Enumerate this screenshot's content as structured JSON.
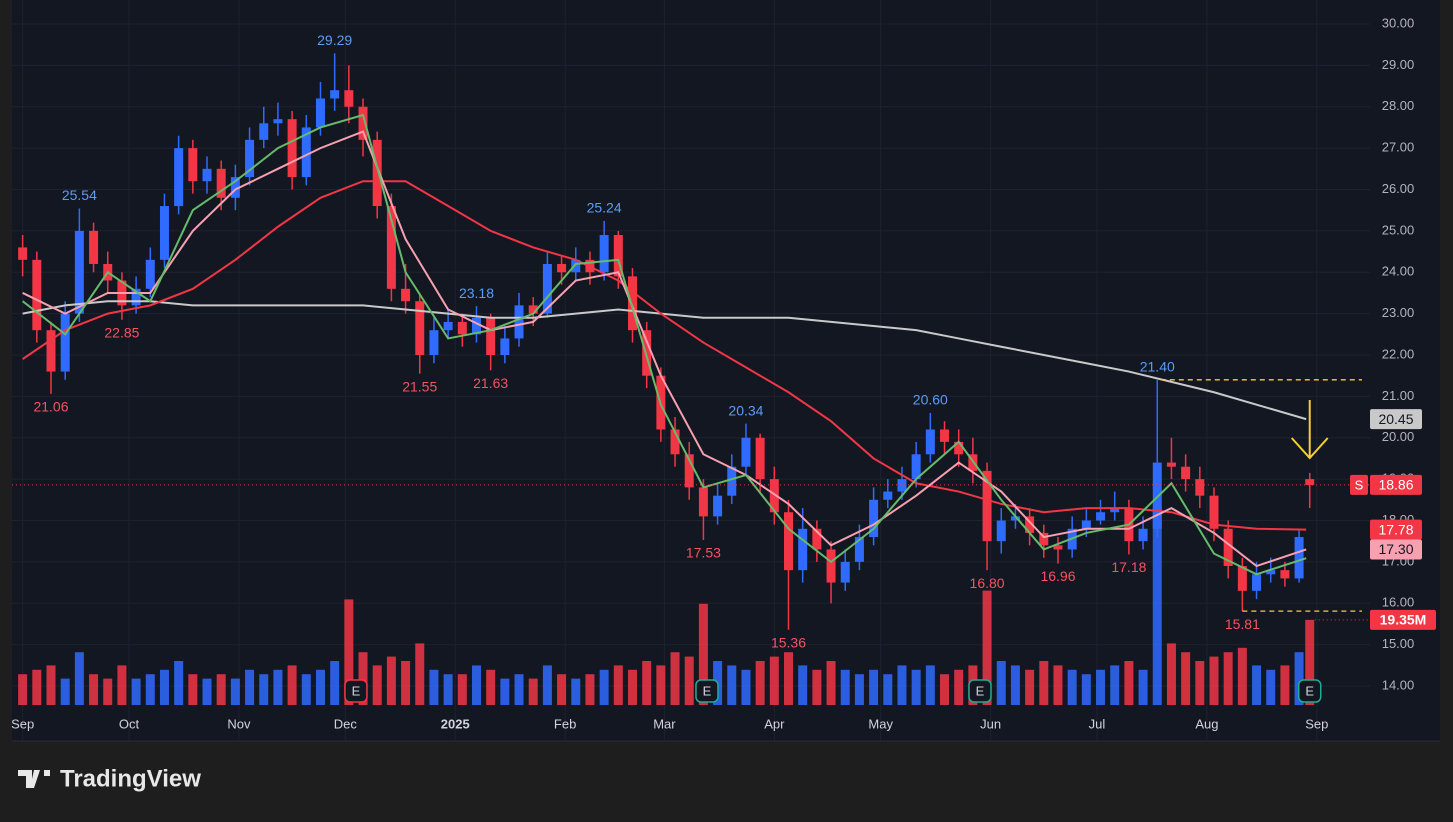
{
  "chart_data": {
    "type": "candlestick",
    "brand": "TradingView",
    "xlim": [
      -3,
      380
    ],
    "ylim": [
      14,
      30
    ],
    "grid": true,
    "xticks": [
      {
        "value": 0,
        "label": "Sep"
      },
      {
        "value": 30,
        "label": "Oct"
      },
      {
        "value": 61,
        "label": "Nov"
      },
      {
        "value": 91,
        "label": "Dec"
      },
      {
        "value": 122,
        "label": "2025"
      },
      {
        "value": 153,
        "label": "Feb"
      },
      {
        "value": 181,
        "label": "Mar"
      },
      {
        "value": 212,
        "label": "Apr"
      },
      {
        "value": 242,
        "label": "May"
      },
      {
        "value": 273,
        "label": "Jun"
      },
      {
        "value": 303,
        "label": "Jul"
      },
      {
        "value": 334,
        "label": "Aug"
      },
      {
        "value": 365,
        "label": "Sep"
      }
    ],
    "yticks": [
      {
        "value": 14,
        "label": "14.00"
      },
      {
        "value": 15,
        "label": "15.00"
      },
      {
        "value": 16,
        "label": "16.00"
      },
      {
        "value": 17,
        "label": "17.00"
      },
      {
        "value": 18,
        "label": "18.00"
      },
      {
        "value": 19,
        "label": "19.00"
      },
      {
        "value": 20,
        "label": "20.00"
      },
      {
        "value": 21,
        "label": "21.00"
      },
      {
        "value": 22,
        "label": "22.00"
      },
      {
        "value": 23,
        "label": "23.00"
      },
      {
        "value": 24,
        "label": "24.00"
      },
      {
        "value": 25,
        "label": "25.00"
      },
      {
        "value": 26,
        "label": "26.00"
      },
      {
        "value": 27,
        "label": "27.00"
      },
      {
        "value": 28,
        "label": "28.00"
      },
      {
        "value": 29,
        "label": "29.00"
      },
      {
        "value": 30,
        "label": "30.00"
      }
    ],
    "up_color": "#2f6bff",
    "down_color": "#f23645",
    "candles": {
      "x": [
        0,
        4,
        8,
        12,
        16,
        20,
        24,
        28,
        32,
        36,
        40,
        44,
        48,
        52,
        56,
        60,
        64,
        68,
        72,
        76,
        80,
        84,
        88,
        92,
        96,
        100,
        104,
        108,
        112,
        116,
        120,
        124,
        128,
        132,
        136,
        140,
        144,
        148,
        152,
        156,
        160,
        164,
        168,
        172,
        176,
        180,
        184,
        188,
        192,
        196,
        200,
        204,
        208,
        212,
        216,
        220,
        224,
        228,
        232,
        236,
        240,
        244,
        248,
        252,
        256,
        260,
        264,
        268,
        272,
        276,
        280,
        284,
        288,
        292,
        296,
        300,
        304,
        308,
        312,
        316,
        320,
        324,
        328,
        332,
        336,
        340,
        344,
        348,
        352,
        356,
        360,
        363
      ],
      "open": [
        24.6,
        24.3,
        22.6,
        21.6,
        23.0,
        25.0,
        24.2,
        23.8,
        23.2,
        23.6,
        24.3,
        25.6,
        27.0,
        26.2,
        26.5,
        25.8,
        26.3,
        27.2,
        27.6,
        27.7,
        26.3,
        27.5,
        28.2,
        28.4,
        28.0,
        27.2,
        25.6,
        23.6,
        23.3,
        22.0,
        22.6,
        22.8,
        22.5,
        22.9,
        22.0,
        22.4,
        23.2,
        23.0,
        24.2,
        24.0,
        24.3,
        24.0,
        24.9,
        23.9,
        22.6,
        21.5,
        20.2,
        19.6,
        18.8,
        18.1,
        18.6,
        19.3,
        20.0,
        19.0,
        18.2,
        16.8,
        17.8,
        17.3,
        16.5,
        17.0,
        17.6,
        18.5,
        18.7,
        19.0,
        19.6,
        20.2,
        19.9,
        19.6,
        19.2,
        17.5,
        18.0,
        18.1,
        17.7,
        17.4,
        17.3,
        17.8,
        18.0,
        18.2,
        18.3,
        17.5,
        17.8,
        19.4,
        19.3,
        19.0,
        18.6,
        17.8,
        16.9,
        16.3,
        16.7,
        16.8,
        16.6,
        19.0
      ],
      "high": [
        24.9,
        24.5,
        22.8,
        23.3,
        25.54,
        25.2,
        24.5,
        24.0,
        23.9,
        24.6,
        25.9,
        27.3,
        27.2,
        26.8,
        26.7,
        26.6,
        27.5,
        28.0,
        28.1,
        27.9,
        27.8,
        28.6,
        29.29,
        29.0,
        28.2,
        27.4,
        25.9,
        24.2,
        23.5,
        22.9,
        23.1,
        23.0,
        23.18,
        23.0,
        22.7,
        23.5,
        23.4,
        24.5,
        24.4,
        24.6,
        24.5,
        25.24,
        25.0,
        24.1,
        22.8,
        21.7,
        20.5,
        19.9,
        19.0,
        18.9,
        19.6,
        20.34,
        20.1,
        19.3,
        18.5,
        18.3,
        18.0,
        17.5,
        17.3,
        17.9,
        18.8,
        19.0,
        19.3,
        19.9,
        20.6,
        20.4,
        20.2,
        20.0,
        19.4,
        18.3,
        18.4,
        18.3,
        17.9,
        17.6,
        18.1,
        18.3,
        18.5,
        18.7,
        18.5,
        18.1,
        21.4,
        20.0,
        19.6,
        19.3,
        18.8,
        18.0,
        17.1,
        17.0,
        17.1,
        17.0,
        17.8,
        19.15
      ],
      "low": [
        23.9,
        22.3,
        21.06,
        21.4,
        22.8,
        24.0,
        23.5,
        22.85,
        23.0,
        23.4,
        24.1,
        25.4,
        25.9,
        25.9,
        25.5,
        25.5,
        26.1,
        27.0,
        27.3,
        26.0,
        26.1,
        27.3,
        27.9,
        27.6,
        26.8,
        25.3,
        23.3,
        23.0,
        21.55,
        21.8,
        22.4,
        22.2,
        22.3,
        21.63,
        21.8,
        22.2,
        22.7,
        22.9,
        23.7,
        23.8,
        23.7,
        23.8,
        23.6,
        22.3,
        21.2,
        19.9,
        19.3,
        18.5,
        17.53,
        17.9,
        18.4,
        19.1,
        18.7,
        17.9,
        15.36,
        16.5,
        17.0,
        16.0,
        16.3,
        16.8,
        17.4,
        18.3,
        18.5,
        18.8,
        19.4,
        19.6,
        19.3,
        18.9,
        16.8,
        17.2,
        17.8,
        17.4,
        17.1,
        16.96,
        17.1,
        17.6,
        17.9,
        18.0,
        17.18,
        17.3,
        17.6,
        19.0,
        18.7,
        18.3,
        17.5,
        16.6,
        15.81,
        16.1,
        16.5,
        16.4,
        16.5,
        18.3
      ],
      "close": [
        24.3,
        22.6,
        21.6,
        23.0,
        25.0,
        24.2,
        23.8,
        23.2,
        23.6,
        24.3,
        25.6,
        27.0,
        26.2,
        26.5,
        25.8,
        26.3,
        27.2,
        27.6,
        27.7,
        26.3,
        27.5,
        28.2,
        28.4,
        28.0,
        27.2,
        25.6,
        23.6,
        23.3,
        22.0,
        22.6,
        22.8,
        22.5,
        22.9,
        22.0,
        22.4,
        23.2,
        23.0,
        24.2,
        24.0,
        24.3,
        24.0,
        24.9,
        23.9,
        22.6,
        21.5,
        20.2,
        19.6,
        18.8,
        18.1,
        18.6,
        19.3,
        20.0,
        19.0,
        18.2,
        16.8,
        17.8,
        17.3,
        16.5,
        17.0,
        17.6,
        18.5,
        18.7,
        19.0,
        19.6,
        20.2,
        19.9,
        19.6,
        19.2,
        17.5,
        18.0,
        18.1,
        17.7,
        17.4,
        17.3,
        17.8,
        18.0,
        18.2,
        18.3,
        17.5,
        17.8,
        19.4,
        19.3,
        19.0,
        18.6,
        17.8,
        16.9,
        16.3,
        16.7,
        16.8,
        16.6,
        17.6,
        18.86
      ],
      "volume": [
        7,
        8,
        9,
        6,
        12,
        7,
        6,
        9,
        6,
        7,
        8,
        10,
        7,
        6,
        7,
        6,
        8,
        7,
        8,
        9,
        7,
        8,
        10,
        24,
        12,
        9,
        11,
        10,
        14,
        8,
        7,
        7,
        9,
        8,
        6,
        7,
        6,
        9,
        7,
        6,
        7,
        8,
        9,
        8,
        10,
        9,
        12,
        11,
        23,
        10,
        9,
        8,
        10,
        11,
        12,
        9,
        8,
        10,
        8,
        7,
        8,
        7,
        9,
        8,
        9,
        7,
        8,
        9,
        26,
        10,
        9,
        8,
        10,
        9,
        8,
        7,
        8,
        9,
        10,
        8,
        45,
        14,
        12,
        10,
        11,
        12,
        13,
        9,
        8,
        9,
        12,
        19.35
      ],
      "volume_labels": [
        null,
        null,
        null,
        null,
        null,
        null,
        null,
        null,
        null,
        null,
        null,
        null,
        null,
        null,
        null,
        null,
        null,
        null,
        null,
        null,
        null,
        null,
        null,
        null,
        null,
        null,
        null,
        null,
        null,
        null,
        null,
        null,
        null,
        null,
        null,
        null,
        null,
        null,
        null,
        null,
        null,
        null,
        null,
        null,
        null,
        null,
        null,
        null,
        null,
        null,
        null,
        null,
        null,
        null,
        null,
        null,
        null,
        null,
        null,
        null,
        null,
        null,
        null,
        null,
        null,
        null,
        null,
        null,
        null,
        null,
        null,
        null,
        null,
        null,
        null,
        null,
        null,
        null,
        null,
        null,
        null,
        null,
        null,
        null,
        null,
        null,
        null,
        null,
        null,
        null,
        null,
        "19.35M"
      ],
      "high_labels": [
        null,
        null,
        null,
        null,
        "25.54",
        null,
        null,
        null,
        null,
        null,
        null,
        null,
        null,
        null,
        null,
        null,
        null,
        null,
        null,
        null,
        null,
        null,
        "29.29",
        null,
        null,
        null,
        null,
        null,
        null,
        null,
        null,
        null,
        "23.18",
        null,
        null,
        null,
        null,
        null,
        null,
        null,
        null,
        "25.24",
        null,
        null,
        null,
        null,
        null,
        null,
        null,
        null,
        null,
        "20.34",
        null,
        null,
        null,
        null,
        null,
        null,
        null,
        null,
        null,
        null,
        null,
        null,
        "20.60",
        null,
        null,
        null,
        null,
        null,
        null,
        null,
        null,
        null,
        null,
        null,
        null,
        null,
        null,
        null,
        "21.40",
        null,
        null,
        null,
        null,
        null,
        null,
        null,
        null,
        null,
        null,
        null
      ],
      "low_labels": [
        null,
        null,
        "21.06",
        null,
        null,
        null,
        null,
        "22.85",
        null,
        null,
        null,
        null,
        null,
        null,
        null,
        null,
        null,
        null,
        null,
        null,
        null,
        null,
        null,
        null,
        null,
        null,
        null,
        null,
        "21.55",
        null,
        null,
        null,
        null,
        "21.63",
        null,
        null,
        null,
        null,
        null,
        null,
        null,
        null,
        null,
        null,
        null,
        null,
        null,
        null,
        "17.53",
        null,
        null,
        null,
        null,
        null,
        "15.36",
        null,
        null,
        null,
        null,
        null,
        null,
        null,
        null,
        null,
        null,
        null,
        null,
        null,
        "16.80",
        null,
        null,
        null,
        null,
        "16.96",
        null,
        null,
        null,
        null,
        "17.18",
        null,
        null,
        null,
        null,
        null,
        null,
        null,
        "15.81",
        null,
        null,
        null,
        null,
        null
      ]
    },
    "series": [
      {
        "color": "#c9c9c9",
        "x": [
          0,
          12,
          24,
          36,
          48,
          60,
          72,
          84,
          96,
          108,
          120,
          132,
          144,
          156,
          168,
          180,
          192,
          204,
          216,
          228,
          240,
          252,
          264,
          276,
          288,
          300,
          312,
          324,
          336,
          348,
          362
        ],
        "values": [
          23.0,
          23.2,
          23.3,
          23.3,
          23.2,
          23.2,
          23.2,
          23.2,
          23.2,
          23.1,
          23.0,
          22.9,
          22.9,
          23.0,
          23.1,
          23.0,
          22.9,
          22.9,
          22.9,
          22.8,
          22.7,
          22.6,
          22.4,
          22.2,
          22.0,
          21.8,
          21.6,
          21.35,
          21.1,
          20.8,
          20.45
        ]
      },
      {
        "color": "#f23645",
        "x": [
          0,
          12,
          24,
          36,
          48,
          60,
          72,
          84,
          96,
          108,
          120,
          132,
          144,
          156,
          168,
          180,
          192,
          204,
          216,
          228,
          240,
          252,
          264,
          276,
          288,
          300,
          312,
          324,
          336,
          348,
          362
        ],
        "values": [
          21.9,
          22.6,
          23.0,
          23.2,
          23.6,
          24.3,
          25.1,
          25.8,
          26.2,
          26.2,
          25.6,
          25.0,
          24.6,
          24.3,
          23.8,
          23.0,
          22.3,
          21.7,
          21.1,
          20.4,
          19.5,
          18.9,
          18.7,
          18.4,
          18.2,
          18.3,
          18.3,
          18.2,
          17.9,
          17.8,
          17.78
        ]
      },
      {
        "color": "#f7a1b0",
        "x": [
          0,
          12,
          24,
          36,
          48,
          60,
          72,
          84,
          96,
          108,
          120,
          132,
          144,
          156,
          168,
          180,
          192,
          204,
          216,
          228,
          240,
          252,
          264,
          276,
          288,
          300,
          312,
          324,
          336,
          348,
          362
        ],
        "values": [
          23.5,
          23.0,
          23.5,
          23.5,
          25.0,
          26.0,
          26.5,
          27.0,
          27.4,
          24.8,
          23.1,
          22.6,
          22.8,
          23.8,
          24.0,
          21.5,
          19.6,
          19.1,
          18.4,
          17.4,
          17.9,
          18.6,
          19.4,
          18.7,
          17.6,
          17.8,
          17.8,
          18.3,
          17.7,
          16.9,
          17.3
        ]
      },
      {
        "color": "#66bb6a",
        "x": [
          0,
          12,
          24,
          36,
          48,
          60,
          72,
          84,
          96,
          108,
          120,
          132,
          144,
          156,
          168,
          180,
          192,
          204,
          216,
          228,
          240,
          252,
          264,
          276,
          288,
          300,
          312,
          324,
          336,
          348,
          362
        ],
        "values": [
          23.3,
          22.5,
          24.0,
          23.3,
          25.5,
          26.2,
          27.0,
          27.5,
          27.8,
          24.0,
          22.4,
          22.6,
          23.0,
          24.2,
          24.3,
          20.8,
          18.8,
          19.1,
          17.8,
          17.0,
          17.8,
          19.0,
          19.9,
          18.5,
          17.3,
          17.7,
          17.9,
          18.9,
          17.2,
          16.7,
          17.09
        ]
      }
    ],
    "price_tags": [
      {
        "value": 20.45,
        "label": "20.45",
        "color": "#c9c9c9"
      },
      {
        "value": 17.78,
        "label": "17.78",
        "color": "#f23645"
      },
      {
        "value": 17.3,
        "label": "17.30",
        "color": "#f7a1b0"
      }
    ],
    "last_marker": "S",
    "levels": [
      {
        "x": 321,
        "y": 21.4
      },
      {
        "x": 344,
        "y": 15.81
      }
    ],
    "earnings": {
      "x": [
        94,
        193,
        270,
        363
      ],
      "label": "E",
      "colors": [
        "#f23645",
        "#22ab94",
        "#22ab94",
        "#22ab94"
      ]
    }
  }
}
